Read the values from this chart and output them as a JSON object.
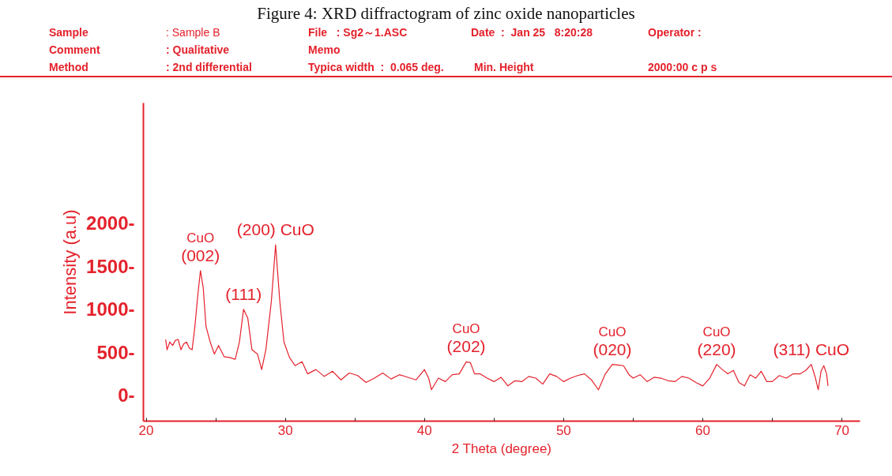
{
  "chart_data": {
    "type": "line",
    "title": "Figure 4: XRD diffractogram of zinc oxide nanoparticles",
    "xlabel": "2 Theta (degree)",
    "ylabel": "Intensity (a.u)",
    "x": [
      21.4,
      21.5,
      21.7,
      21.9,
      22.1,
      22.3,
      22.5,
      22.7,
      22.9,
      23.1,
      23.3,
      23.5,
      23.7,
      23.9,
      24.1,
      24.3,
      24.6,
      24.9,
      25.2,
      25.6,
      26.0,
      26.4,
      26.7,
      27.0,
      27.3,
      27.6,
      28.0,
      28.3,
      28.6,
      29.0,
      29.3,
      29.6,
      29.9,
      30.3,
      30.7,
      31.2,
      31.6,
      32.2,
      32.8,
      33.4,
      34.0,
      34.6,
      35.2,
      35.8,
      36.4,
      37.0,
      37.6,
      38.2,
      38.8,
      39.4,
      40.0,
      40.3,
      40.5,
      41.0,
      41.5,
      42.0,
      42.5,
      43.0,
      43.3,
      43.6,
      44.0,
      44.5,
      45.0,
      45.5,
      46.0,
      46.5,
      47.0,
      47.5,
      48.0,
      48.5,
      49.0,
      49.5,
      50.0,
      50.5,
      51.0,
      51.5,
      52.0,
      52.5,
      53.0,
      53.5,
      54.0,
      54.3,
      54.7,
      55.0,
      55.5,
      56.0,
      56.5,
      57.0,
      57.5,
      58.0,
      58.5,
      59.0,
      59.5,
      60.0,
      60.5,
      61.0,
      61.4,
      61.8,
      62.2,
      62.6,
      63.0,
      63.4,
      63.8,
      64.2,
      64.6,
      65.0,
      65.5,
      66.0,
      66.5,
      67.0,
      67.4,
      67.8,
      68.1,
      68.3,
      68.5,
      68.7,
      68.9,
      69.0
    ],
    "series": [
      {
        "color": "#e4222c",
        "values": [
          650,
          530,
          620,
          580,
          640,
          650,
          530,
          600,
          620,
          550,
          530,
          800,
          1150,
          1450,
          1250,
          800,
          620,
          480,
          580,
          450,
          440,
          420,
          620,
          1000,
          900,
          530,
          480,
          300,
          530,
          1100,
          1750,
          1100,
          620,
          440,
          345,
          390,
          250,
          300,
          220,
          280,
          180,
          260,
          230,
          150,
          200,
          260,
          190,
          240,
          210,
          180,
          300,
          200,
          65,
          200,
          160,
          240,
          250,
          390,
          380,
          250,
          250,
          200,
          160,
          210,
          110,
          170,
          160,
          220,
          200,
          130,
          250,
          220,
          160,
          200,
          230,
          250,
          180,
          65,
          250,
          360,
          350,
          345,
          240,
          200,
          240,
          160,
          210,
          200,
          170,
          160,
          220,
          200,
          150,
          110,
          200,
          360,
          300,
          250,
          290,
          150,
          110,
          240,
          200,
          280,
          160,
          160,
          230,
          200,
          250,
          250,
          290,
          360,
          200,
          65,
          280,
          345,
          250,
          110
        ]
      }
    ],
    "xlim": [
      19.8,
      71.3
    ],
    "ylim": [
      -300,
      3400
    ],
    "xticks": [
      20,
      {
        "value": 25,
        "label": null
      },
      30,
      {
        "value": 35,
        "label": null
      },
      40,
      {
        "value": 45,
        "label": null
      },
      50,
      {
        "value": 55,
        "label": null
      },
      60,
      {
        "value": 65,
        "label": null
      },
      70
    ],
    "yticks": [
      {
        "value": 0,
        "label": "0-"
      },
      {
        "value": 500,
        "label": "500-"
      },
      {
        "value": 1000,
        "label": "1000-"
      },
      {
        "value": 1500,
        "label": "1500-"
      },
      {
        "value": 2000,
        "label": "2000-"
      }
    ],
    "grid": false,
    "marker": "none",
    "line_style": "solid",
    "annotations": [
      "Sample",
      ": Sample B",
      "File   : Sg2～1.ASC",
      "Date  :  Jan 25   8:20:28",
      "Operator :",
      "Comment",
      ": Qualitative",
      "Memo",
      "Method",
      ": 2nd differential",
      "Typica width  :  0.065 deg.",
      "Min. Height",
      "2000:00 c p s",
      {
        "text": "CuO\n(002)",
        "x": 23.9,
        "y": 1450
      },
      {
        "text": "(111)",
        "x": 27.0,
        "y": 995
      },
      {
        "text": "(200) CuO",
        "x": 29.3,
        "y": 1750
      },
      {
        "text": "CuO\n(202)",
        "x": 43.0,
        "y": 390
      },
      {
        "text": "CuO\n(020)",
        "x": 53.5,
        "y": 360
      },
      {
        "text": "CuO\n(220)",
        "x": 61.0,
        "y": 360
      },
      {
        "text": "(311) CuO",
        "x": 67.8,
        "y": 360
      }
    ]
  }
}
